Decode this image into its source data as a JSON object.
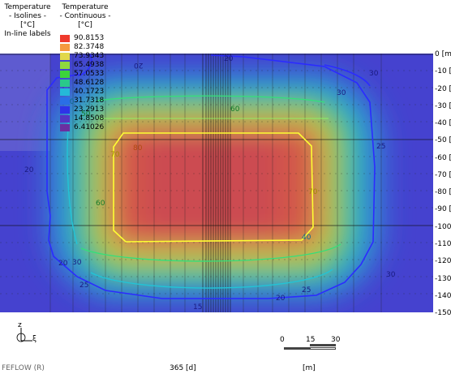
{
  "legend_isolines": {
    "title": "Temperature",
    "subtitle": "- Isolines -",
    "unit": "[°C]",
    "mode": "In-line labels"
  },
  "legend_continuous": {
    "title": "Temperature",
    "subtitle": "- Continuous -",
    "unit": "[°C]",
    "items": [
      {
        "value": "90.8153",
        "color": "#ef3a2c"
      },
      {
        "value": "82.3748",
        "color": "#f59a3e"
      },
      {
        "value": "73.9343",
        "color": "#e1d84a"
      },
      {
        "value": "65.4938",
        "color": "#8fd83e"
      },
      {
        "value": "57.0533",
        "color": "#3cd43a"
      },
      {
        "value": "48.6128",
        "color": "#2ac98a"
      },
      {
        "value": "40.1723",
        "color": "#25b8d8"
      },
      {
        "value": "31.7318",
        "color": "#2a6fe6"
      },
      {
        "value": "23.2913",
        "color": "#2f33e8"
      },
      {
        "value": "14.8508",
        "color": "#5436c4"
      },
      {
        "value": "6.41026",
        "color": "#6b2fa0"
      }
    ]
  },
  "y_axis": {
    "ticks": [
      "0 [m]",
      "-10 [m]",
      "-20 [m]",
      "-30 [m]",
      "-40 [m]",
      "-50 [m]",
      "-60 [m]",
      "-70 [m]",
      "-80 [m]",
      "-90 [m]",
      "-100 [m]",
      "-110 [m]",
      "-120 [m]",
      "-130 [m]",
      "-140 [m]",
      "-150 [m]"
    ]
  },
  "isoline_labels": {
    "l20a": "20",
    "l20b": "20",
    "l20c": "20",
    "l20d": "20",
    "l20e": "20",
    "l25a": "25",
    "l25b": "25",
    "l25c": "25",
    "l30a": "30",
    "l30b": "30",
    "l30c": "30",
    "l30d": "30",
    "l15a": "15",
    "l15b": "15",
    "l40a": "40",
    "l40b": "40",
    "l50a": "50",
    "l60a": "60",
    "l60b": "60",
    "l70a": "70",
    "l70b": "70",
    "l80a": "80"
  },
  "axis_triad": {
    "z": "z",
    "x": "ξ"
  },
  "scale_bar": {
    "t0": "0",
    "t1": "15",
    "t2": "30",
    "unit": "[m]"
  },
  "footer": {
    "product": "FEFLOW (R)",
    "time": "365 [d]"
  }
}
